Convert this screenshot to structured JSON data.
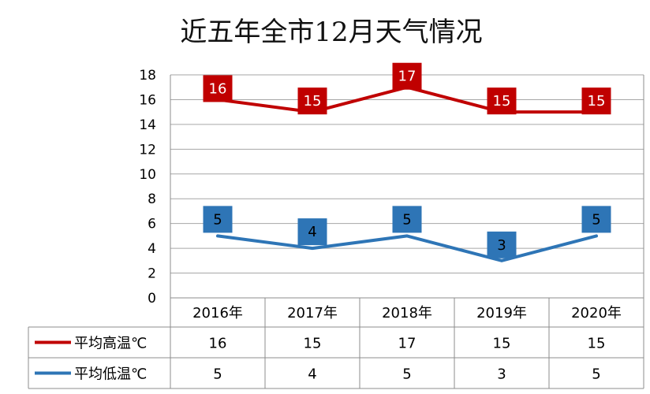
{
  "chart_data": {
    "type": "line",
    "title": "近五年全市12月天气情况",
    "categories": [
      "2016年",
      "2017年",
      "2018年",
      "2019年",
      "2020年"
    ],
    "ylim": [
      0,
      18
    ],
    "yticks": [
      0,
      2,
      4,
      6,
      8,
      10,
      12,
      14,
      16,
      18
    ],
    "grid": true,
    "legend": "data-table",
    "series": [
      {
        "name": "平均高温℃",
        "values": [
          16,
          15,
          17,
          15,
          15
        ],
        "color": "#C00000"
      },
      {
        "name": "平均低温℃",
        "values": [
          5,
          4,
          5,
          3,
          5
        ],
        "color": "#2E75B6"
      }
    ]
  }
}
